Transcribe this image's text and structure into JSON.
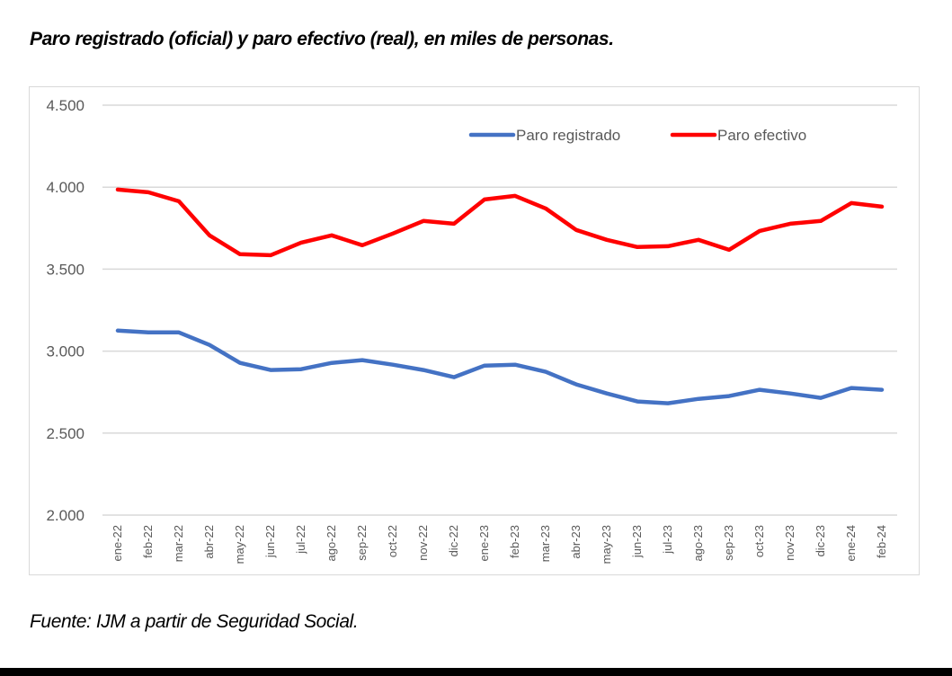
{
  "title": "Paro registrado (oficial) y paro efectivo (real), en miles de personas.",
  "source": "Fuente: IJM a partir de Seguridad Social.",
  "colors": {
    "paro_registrado": "#4472c4",
    "paro_efectivo": "#ff0000",
    "grid": "#d9d9d9",
    "axis_text": "#595959"
  },
  "chart_data": {
    "type": "line",
    "title": "Paro registrado (oficial) y paro efectivo (real), en miles de personas.",
    "xlabel": "",
    "ylabel": "",
    "ylim": [
      2000,
      4500
    ],
    "yticks": [
      2000,
      2500,
      3000,
      3500,
      4000,
      4500
    ],
    "ytick_labels": [
      "2.000",
      "2.500",
      "3.000",
      "3.500",
      "4.000",
      "4.500"
    ],
    "grid": true,
    "legend_position": "top-right",
    "categories": [
      "ene-22",
      "feb-22",
      "mar-22",
      "abr-22",
      "may-22",
      "jun-22",
      "jul-22",
      "ago-22",
      "sep-22",
      "oct-22",
      "nov-22",
      "dic-22",
      "ene-23",
      "feb-23",
      "mar-23",
      "abr-23",
      "may-23",
      "jun-23",
      "jul-23",
      "ago-23",
      "sep-23",
      "oct-23",
      "nov-23",
      "dic-23",
      "ene-24",
      "feb-24"
    ],
    "series": [
      {
        "name": "Paro registrado",
        "color": "#4472c4",
        "values": [
          3125,
          3114,
          3114,
          3038,
          2928,
          2885,
          2890,
          2928,
          2945,
          2917,
          2885,
          2841,
          2912,
          2917,
          2874,
          2797,
          2742,
          2693,
          2682,
          2709,
          2726,
          2764,
          2742,
          2715,
          2775,
          2764
        ]
      },
      {
        "name": "Paro efectivo",
        "color": "#ff0000",
        "values": [
          3985,
          3969,
          3914,
          3706,
          3591,
          3585,
          3662,
          3706,
          3646,
          3717,
          3794,
          3777,
          3925,
          3947,
          3870,
          3739,
          3679,
          3635,
          3640,
          3679,
          3618,
          3733,
          3777,
          3794,
          3903,
          3881
        ]
      }
    ]
  }
}
